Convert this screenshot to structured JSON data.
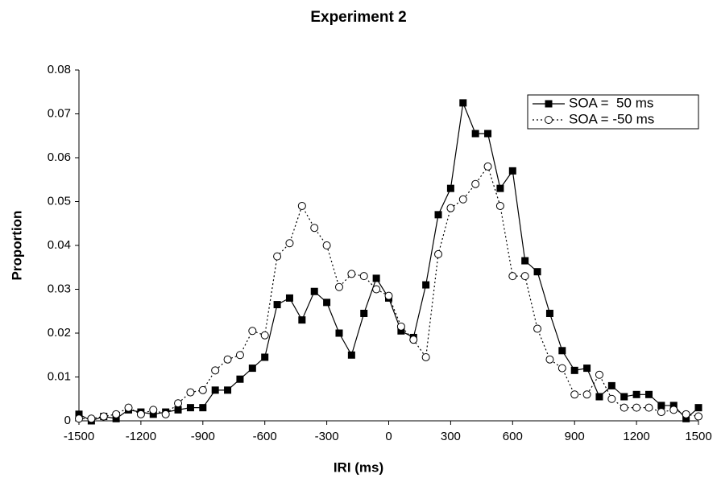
{
  "chart_data": {
    "type": "line",
    "title": "Experiment 2",
    "x_label": "IRI (ms)",
    "y_label": "Proportion",
    "x": [
      -1500,
      -1440,
      -1380,
      -1320,
      -1260,
      -1200,
      -1140,
      -1080,
      -1020,
      -960,
      -900,
      -840,
      -780,
      -720,
      -660,
      -600,
      -540,
      -480,
      -420,
      -360,
      -300,
      -240,
      -180,
      -120,
      -60,
      0,
      60,
      120,
      180,
      240,
      300,
      360,
      420,
      480,
      540,
      600,
      660,
      720,
      780,
      840,
      900,
      960,
      1020,
      1080,
      1140,
      1200,
      1260,
      1320,
      1380,
      1440,
      1500
    ],
    "series": [
      {
        "name": "SOA =  50 ms",
        "color": "#000000",
        "line_style": "solid",
        "marker": "square",
        "values": [
          0.0015,
          0,
          0.001,
          0.0005,
          0.0025,
          0.002,
          0.0015,
          0.002,
          0.0025,
          0.003,
          0.003,
          0.007,
          0.007,
          0.0095,
          0.012,
          0.0145,
          0.0265,
          0.028,
          0.023,
          0.0295,
          0.027,
          0.02,
          0.015,
          0.0245,
          0.0325,
          0.028,
          0.0205,
          0.019,
          0.031,
          0.047,
          0.053,
          0.0725,
          0.0655,
          0.0655,
          0.053,
          0.057,
          0.0365,
          0.034,
          0.0245,
          0.016,
          0.0115,
          0.012,
          0.0055,
          0.008,
          0.0055,
          0.006,
          0.006,
          0.0035,
          0.0035,
          0.0005,
          0.003
        ]
      },
      {
        "name": "SOA = -50 ms",
        "color": "#000000",
        "line_style": "dotted",
        "marker": "circle",
        "values": [
          0.0005,
          0.0005,
          0.001,
          0.0015,
          0.003,
          0.0015,
          0.0025,
          0.0015,
          0.004,
          0.0065,
          0.007,
          0.0115,
          0.014,
          0.015,
          0.0205,
          0.0195,
          0.0375,
          0.0405,
          0.049,
          0.044,
          0.04,
          0.0305,
          0.0335,
          0.033,
          0.03,
          0.0285,
          0.0215,
          0.0185,
          0.0145,
          0.038,
          0.0485,
          0.0505,
          0.054,
          0.058,
          0.049,
          0.033,
          0.033,
          0.021,
          0.014,
          0.012,
          0.006,
          0.006,
          0.0105,
          0.005,
          0.003,
          0.003,
          0.003,
          0.002,
          0.0025,
          0.0015,
          0.001
        ]
      }
    ],
    "xlim": [
      -1500,
      1500
    ],
    "xticks": [
      -1500,
      -1200,
      -900,
      -600,
      -300,
      0,
      300,
      600,
      900,
      1200,
      1500
    ],
    "ylim": [
      0,
      0.08
    ],
    "yticks": [
      0,
      0.01,
      0.02,
      0.03,
      0.04,
      0.05,
      0.06,
      0.07,
      0.08
    ],
    "grid": false,
    "legend": "upper right"
  }
}
